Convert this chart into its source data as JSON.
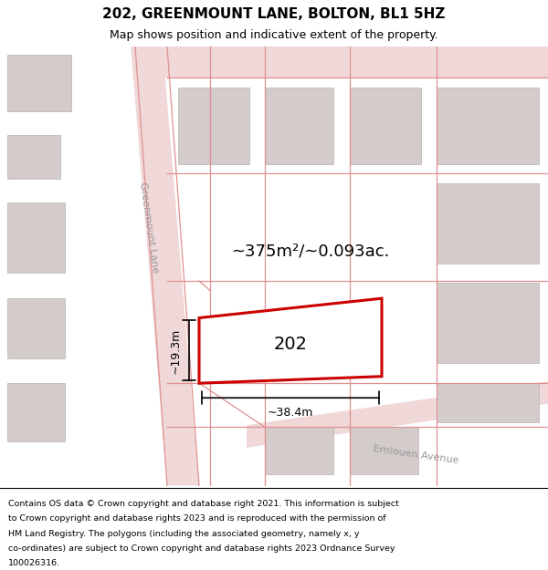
{
  "title": "202, GREENMOUNT LANE, BOLTON, BL1 5HZ",
  "subtitle": "Map shows position and indicative extent of the property.",
  "footer_lines": [
    "Contains OS data © Crown copyright and database right 2021. This information is subject",
    "to Crown copyright and database rights 2023 and is reproduced with the permission of",
    "HM Land Registry. The polygons (including the associated geometry, namely x, y",
    "co-ordinates) are subject to Crown copyright and database rights 2023 Ordnance Survey",
    "100026316."
  ],
  "area_label": "~375m²/~0.093ac.",
  "width_label": "~38.4m",
  "height_label": "~19.3m",
  "plot_number": "202",
  "map_bg": "#f5eeee",
  "road_fill": "#f0d8d8",
  "building_color": "#d4cbcb",
  "building_edge": "#bab2b2",
  "plot_color": "#cc0000",
  "red_line": "#e09090",
  "street_color": "#999999",
  "street_label_1": "Greenmount Lane",
  "street_label_2": "Ernlouen Avenue",
  "title_fontsize": 11,
  "subtitle_fontsize": 9,
  "area_fontsize": 13,
  "plot_num_fontsize": 14,
  "dim_fontsize": 9,
  "street_fontsize": 8,
  "footer_fontsize": 6.8
}
